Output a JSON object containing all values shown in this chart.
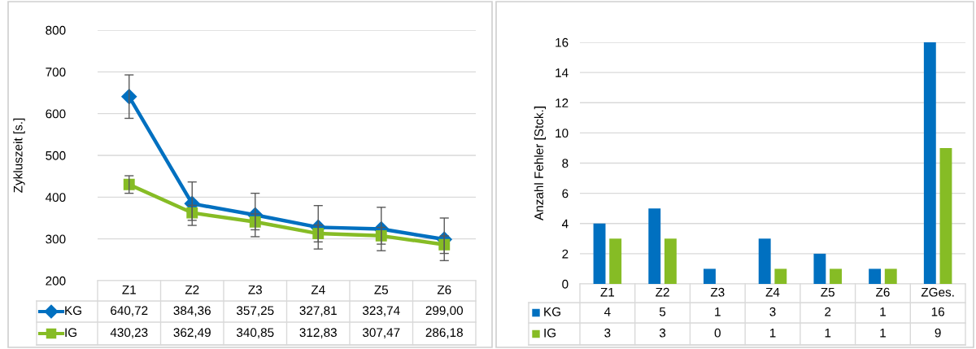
{
  "chart_data": [
    {
      "type": "line",
      "ylabel": "Zykluszeit [s.]",
      "categories": [
        "Z1",
        "Z2",
        "Z3",
        "Z4",
        "Z5",
        "Z6"
      ],
      "ylim": [
        200,
        800
      ],
      "yticks": [
        200,
        300,
        400,
        500,
        600,
        700,
        800
      ],
      "grid": "y",
      "legend": "bottom",
      "line_style": "solid",
      "series": [
        {
          "name": "KG",
          "color": "#0070c0",
          "marker": "diamond",
          "values": [
            640.72,
            384.36,
            357.25,
            327.81,
            323.74,
            299.0
          ],
          "errors": [
            52,
            52,
            52,
            52,
            52,
            51
          ],
          "value_labels": [
            "640,72",
            "384,36",
            "357,25",
            "327,81",
            "323,74",
            "299,00"
          ]
        },
        {
          "name": "IG",
          "color": "#86bc25",
          "marker": "square",
          "values": [
            430.23,
            362.49,
            340.85,
            312.83,
            307.47,
            286.18
          ],
          "errors": [
            21,
            18,
            19,
            20,
            20,
            21
          ],
          "value_labels": [
            "430,23",
            "362,49",
            "340,85",
            "312,83",
            "307,47",
            "286,18"
          ]
        }
      ]
    },
    {
      "type": "bar",
      "ylabel": "Anzahl Fehler [Stck.]",
      "categories": [
        "Z1",
        "Z2",
        "Z3",
        "Z4",
        "Z5",
        "Z6",
        "ZGes."
      ],
      "ylim": [
        0,
        16
      ],
      "yticks": [
        0,
        2,
        4,
        6,
        8,
        10,
        12,
        14,
        16
      ],
      "grid": "y",
      "legend": "bottom",
      "data_labels": true,
      "series": [
        {
          "name": "KG",
          "color": "#0070c0",
          "values": [
            4,
            5,
            1,
            3,
            2,
            1,
            16
          ]
        },
        {
          "name": "IG",
          "color": "#86bc25",
          "values": [
            3,
            3,
            0,
            1,
            1,
            1,
            9
          ]
        }
      ]
    }
  ]
}
